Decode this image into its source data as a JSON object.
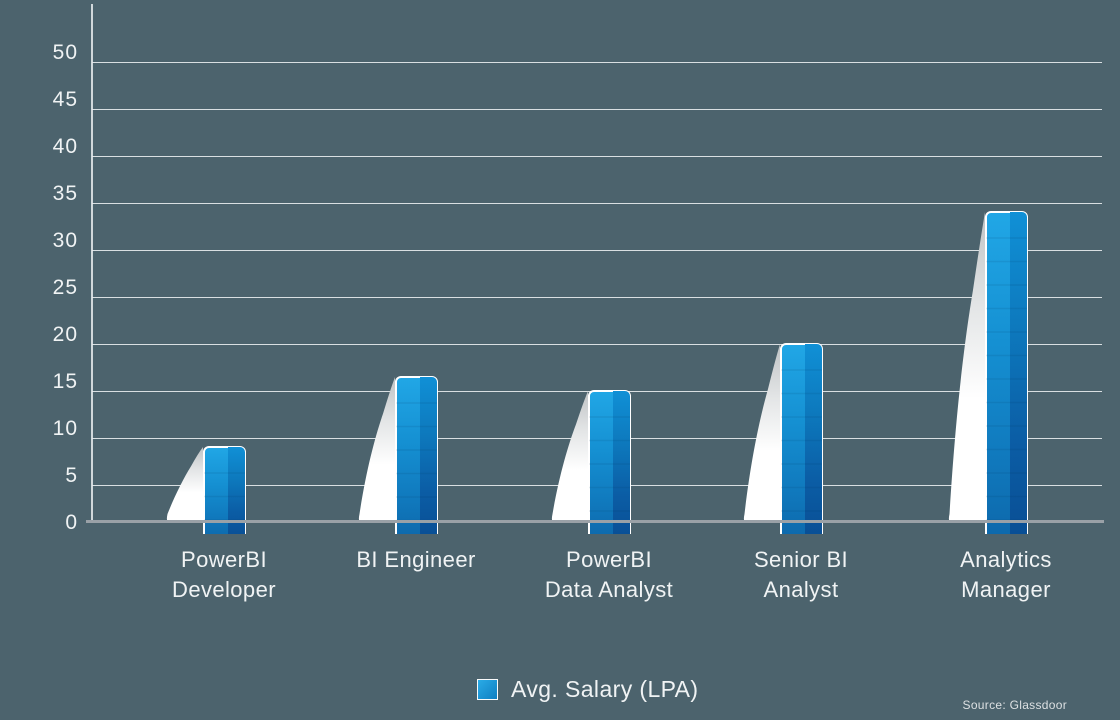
{
  "chart_data": {
    "type": "bar",
    "title": "",
    "categories": [
      "PowerBI\nDeveloper",
      "BI Engineer",
      "PowerBI\nData Analyst",
      "Senior BI\nAnalyst",
      "Analytics\nManager"
    ],
    "values": [
      9,
      16.5,
      15,
      20,
      34
    ],
    "series": [
      {
        "name": "Avg. Salary (LPA)",
        "values": [
          9,
          16.5,
          15,
          20,
          34
        ]
      }
    ],
    "xlabel": "",
    "ylabel": "",
    "ylim": [
      0,
      50
    ],
    "yticks": [
      0,
      5,
      10,
      15,
      20,
      25,
      30,
      35,
      40,
      45,
      50
    ],
    "grid": true,
    "legend_position": "bottom-center",
    "style": "3d-glossy-bars-with-white-swoosh"
  },
  "legend": {
    "label": "Avg. Salary (LPA)"
  },
  "source": {
    "text": "Source: Glassdoor"
  },
  "colors": {
    "background": "#4c636d",
    "grid": "#e9ecee",
    "axis": "#9aa1a7",
    "text": "#f0f3f4",
    "bar_face_top": "#21a7e6",
    "bar_face_mid": "#1590d2",
    "bar_face_low": "#1079bd",
    "bar_face_bottom": "#0d68ab",
    "bar_side_top": "#1090d6",
    "bar_side_mid": "#0d79bd",
    "bar_side_low": "#0b5da5",
    "bar_side_bottom": "#094e94",
    "swoosh_top": "#bfc3c5",
    "swoosh_mid": "#e3e5e6",
    "swoosh_bottom": "#ffffff",
    "legend_swatch_top": "#2aabe6",
    "legend_swatch_bottom": "#0f7fc2"
  }
}
